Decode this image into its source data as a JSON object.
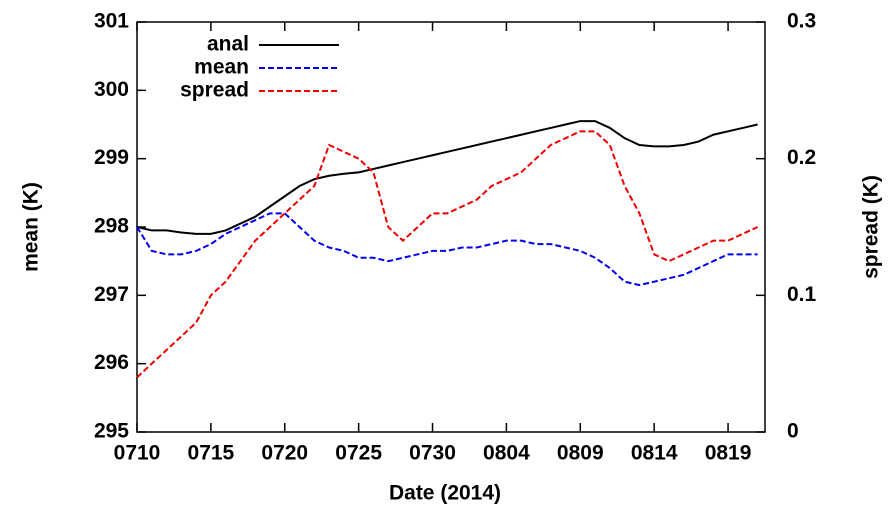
{
  "chart_data": {
    "type": "line",
    "x_label": "Date (2014)",
    "y_label": "mean (K)",
    "y2_label": "spread (K)",
    "x": [
      0,
      1,
      2,
      3,
      4,
      5,
      6,
      7,
      8,
      9,
      10,
      11,
      12,
      13,
      14,
      15,
      16,
      17,
      18,
      19,
      20,
      21,
      22,
      23,
      24,
      25,
      26,
      27,
      28,
      29,
      30,
      31,
      32,
      33,
      34,
      35,
      36,
      37,
      38,
      39,
      40,
      41,
      42
    ],
    "xlim": [
      0,
      42.5
    ],
    "xticks": [
      {
        "value": 0,
        "label": "0710"
      },
      {
        "value": 5,
        "label": "0715"
      },
      {
        "value": 10,
        "label": "0720"
      },
      {
        "value": 15,
        "label": "0725"
      },
      {
        "value": 20,
        "label": "0730"
      },
      {
        "value": 25,
        "label": "0804"
      },
      {
        "value": 30,
        "label": "0809"
      },
      {
        "value": 35,
        "label": "0814"
      },
      {
        "value": 40,
        "label": "0819"
      }
    ],
    "ylim": [
      295,
      301
    ],
    "yticks": [
      295,
      296,
      297,
      298,
      299,
      300,
      301
    ],
    "y2lim": [
      0,
      0.3
    ],
    "y2ticks": [
      0,
      0.1,
      0.2,
      0.3
    ],
    "legend": "top-left",
    "series": [
      {
        "name": "anal",
        "color": "#000000",
        "dash": false,
        "values": [
          298.0,
          297.95,
          297.95,
          297.92,
          297.9,
          297.9,
          297.95,
          298.05,
          298.15,
          298.3,
          298.45,
          298.6,
          298.7,
          298.75,
          298.78,
          298.8,
          298.85,
          298.9,
          298.95,
          299.0,
          299.05,
          299.1,
          299.15,
          299.2,
          299.25,
          299.3,
          299.35,
          299.4,
          299.45,
          299.5,
          299.55,
          299.55,
          299.45,
          299.3,
          299.2,
          299.18,
          299.18,
          299.2,
          299.25,
          299.35,
          299.4,
          299.45,
          299.5
        ]
      },
      {
        "name": "mean",
        "color": "#0000ee",
        "dash": true,
        "values": [
          298.0,
          297.65,
          297.6,
          297.6,
          297.65,
          297.75,
          297.9,
          298.0,
          298.1,
          298.2,
          298.2,
          298.0,
          297.8,
          297.7,
          297.65,
          297.55,
          297.55,
          297.5,
          297.55,
          297.6,
          297.65,
          297.65,
          297.7,
          297.7,
          297.75,
          297.8,
          297.8,
          297.75,
          297.75,
          297.7,
          297.65,
          297.55,
          297.4,
          297.2,
          297.15,
          297.2,
          297.25,
          297.3,
          297.4,
          297.5,
          297.6,
          297.6,
          297.6
        ]
      },
      {
        "name": "spread",
        "color": "#ee0000",
        "dash": true,
        "axis": "y2",
        "values": [
          0.04,
          0.05,
          0.06,
          0.07,
          0.08,
          0.1,
          0.11,
          0.125,
          0.14,
          0.15,
          0.16,
          0.17,
          0.18,
          0.21,
          0.205,
          0.2,
          0.19,
          0.15,
          0.14,
          0.15,
          0.16,
          0.16,
          0.165,
          0.17,
          0.18,
          0.185,
          0.19,
          0.2,
          0.21,
          0.215,
          0.22,
          0.22,
          0.21,
          0.18,
          0.16,
          0.13,
          0.125,
          0.13,
          0.135,
          0.14,
          0.14,
          0.145,
          0.15
        ]
      }
    ]
  }
}
